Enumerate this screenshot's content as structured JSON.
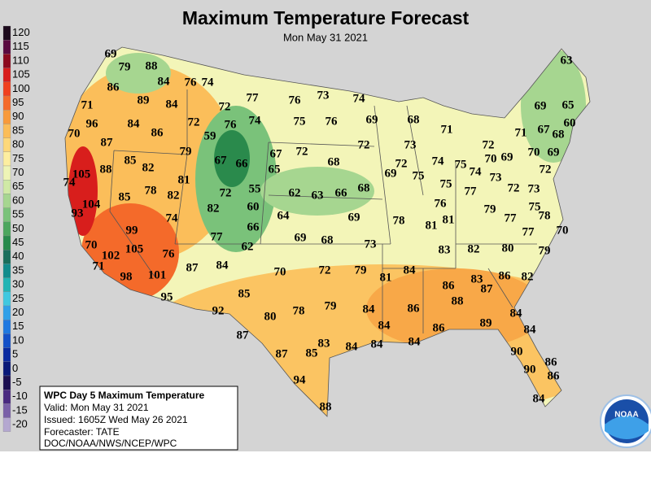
{
  "title": "Maximum Temperature Forecast",
  "subtitle": "Mon May 31 2021",
  "color_scale": {
    "values": [
      120,
      115,
      110,
      105,
      100,
      95,
      90,
      85,
      80,
      75,
      70,
      65,
      60,
      55,
      50,
      45,
      40,
      35,
      30,
      25,
      20,
      15,
      10,
      5,
      0,
      -5,
      -10,
      -15,
      -20
    ],
    "colors": [
      "#1c0a1c",
      "#5a0a40",
      "#8c0a1e",
      "#d81e1c",
      "#f0401e",
      "#f46a2a",
      "#f89a3a",
      "#fbbd58",
      "#fdd87a",
      "#fdeea0",
      "#eef4b6",
      "#d0e9a6",
      "#a6d690",
      "#7ac27a",
      "#4ca65e",
      "#288a4c",
      "#1a6e5c",
      "#128c8c",
      "#22b4b4",
      "#40c8e0",
      "#30a0e8",
      "#2078e0",
      "#1450c8",
      "#0a2aa0",
      "#081878",
      "#1c1050",
      "#4a2a80",
      "#7a60a8",
      "#b4a8d0"
    ]
  },
  "forecast_temps": [
    69,
    79,
    88,
    84,
    76,
    74,
    63,
    86,
    89,
    84,
    72,
    77,
    76,
    73,
    74,
    71,
    69,
    65,
    96,
    84,
    86,
    72,
    76,
    74,
    75,
    76,
    69,
    68,
    71,
    71,
    67,
    60,
    70,
    59,
    87,
    72,
    73,
    72,
    68,
    79,
    85,
    82,
    67,
    66,
    67,
    72,
    68,
    72,
    70,
    69,
    70,
    69,
    74,
    105,
    88,
    81,
    65,
    69,
    75,
    74,
    75,
    74,
    73,
    72,
    85,
    78,
    82,
    72,
    55,
    62,
    63,
    66,
    68,
    75,
    77,
    72,
    73,
    104,
    93,
    82,
    60,
    64,
    69,
    78,
    76,
    79,
    75,
    77,
    78,
    74,
    99,
    81,
    81,
    66,
    70,
    77,
    77,
    69,
    68,
    73,
    62,
    70,
    102,
    105,
    76,
    84,
    70,
    72,
    79,
    83,
    82,
    80,
    79,
    71,
    87,
    84,
    81,
    98,
    101,
    86,
    83,
    87,
    86,
    82,
    95,
    85,
    88,
    80,
    78,
    79,
    84,
    86,
    84,
    92,
    84,
    86,
    89,
    84,
    87,
    84,
    83,
    84,
    84,
    87,
    85,
    90,
    86,
    94,
    90,
    86,
    88,
    84
  ],
  "info_box": [
    "WPC Day 5 Maximum Temperature",
    "Valid: Mon May 31 2021",
    "Issued: 1605Z Wed May 26 2021",
    "Forecaster: TATE",
    "DOC/NOAA/NWS/NCEP/WPC"
  ],
  "logo": "NOAA"
}
